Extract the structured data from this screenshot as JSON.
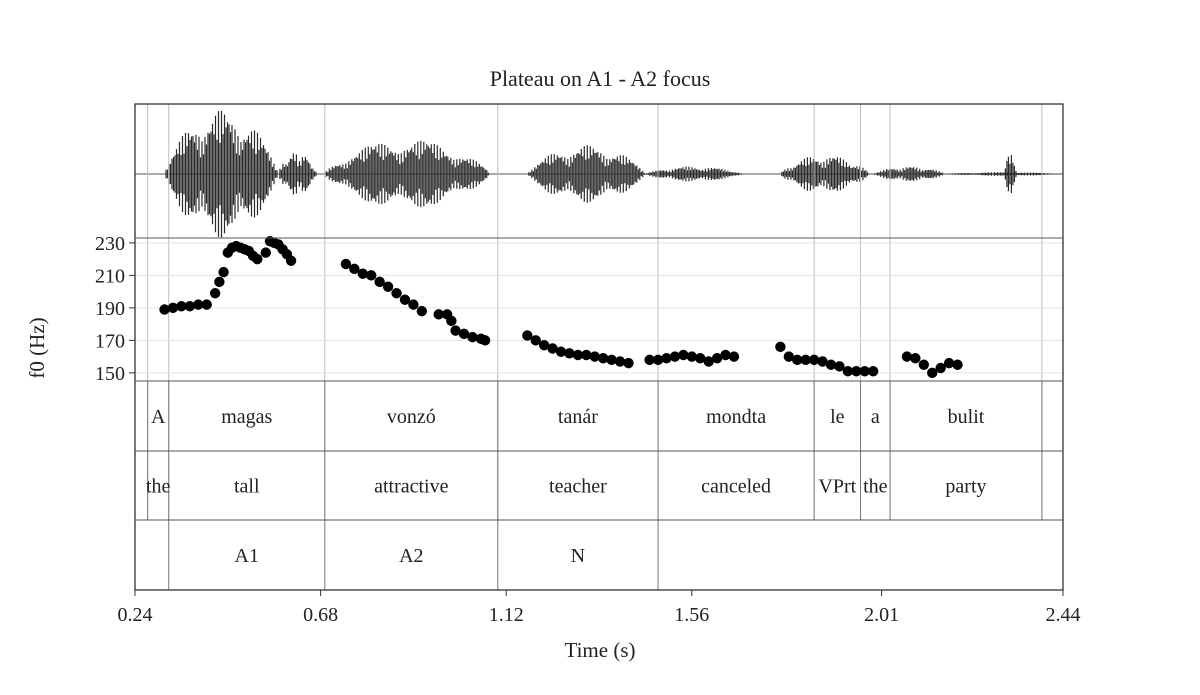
{
  "chart_data": {
    "type": "scatter",
    "title": "Plateau on A1 - A2 focus",
    "xlabel": "Time (s)",
    "ylabel": "f0 (Hz)",
    "xlim": [
      0.24,
      2.44
    ],
    "ylim": [
      145,
      233
    ],
    "x_ticks": [
      "0.24",
      "0.68",
      "1.12",
      "1.56",
      "2.01",
      "2.44"
    ],
    "y_ticks": [
      "230",
      "210",
      "190",
      "170",
      "150"
    ],
    "waveform_segments": [
      {
        "start": 0.31,
        "end": 0.58,
        "amplitude": 1.0
      },
      {
        "start": 0.58,
        "end": 0.67,
        "amplitude": 0.35
      },
      {
        "start": 0.69,
        "end": 1.08,
        "amplitude": 0.55
      },
      {
        "start": 1.17,
        "end": 1.45,
        "amplitude": 0.45
      },
      {
        "start": 1.45,
        "end": 1.68,
        "amplitude": 0.12
      },
      {
        "start": 1.77,
        "end": 1.98,
        "amplitude": 0.3
      },
      {
        "start": 1.99,
        "end": 2.16,
        "amplitude": 0.12
      },
      {
        "start": 2.16,
        "end": 2.44,
        "amplitude": 0.03
      },
      {
        "start": 2.3,
        "end": 2.33,
        "amplitude": 0.35
      }
    ],
    "series": [
      {
        "points": [
          [
            0.31,
            189
          ],
          [
            0.33,
            190
          ],
          [
            0.35,
            191
          ],
          [
            0.37,
            191
          ],
          [
            0.39,
            192
          ],
          [
            0.41,
            192
          ],
          [
            0.43,
            199
          ],
          [
            0.44,
            206
          ],
          [
            0.45,
            212
          ],
          [
            0.46,
            224
          ],
          [
            0.47,
            227
          ],
          [
            0.48,
            228
          ],
          [
            0.49,
            227
          ],
          [
            0.5,
            226
          ],
          [
            0.51,
            225
          ],
          [
            0.52,
            222
          ],
          [
            0.53,
            220
          ],
          [
            0.55,
            224
          ],
          [
            0.56,
            231
          ],
          [
            0.57,
            230
          ],
          [
            0.58,
            229
          ],
          [
            0.59,
            226
          ],
          [
            0.6,
            223
          ],
          [
            0.61,
            219
          ],
          [
            0.74,
            217
          ],
          [
            0.76,
            214
          ],
          [
            0.78,
            211
          ],
          [
            0.8,
            210
          ],
          [
            0.82,
            206
          ],
          [
            0.84,
            203
          ],
          [
            0.86,
            199
          ],
          [
            0.88,
            195
          ],
          [
            0.9,
            192
          ],
          [
            0.92,
            188
          ],
          [
            0.96,
            186
          ],
          [
            0.98,
            186
          ],
          [
            0.99,
            182
          ],
          [
            1.0,
            176
          ],
          [
            1.02,
            174
          ],
          [
            1.04,
            172
          ],
          [
            1.06,
            171
          ],
          [
            1.07,
            170
          ],
          [
            1.17,
            173
          ],
          [
            1.19,
            170
          ],
          [
            1.21,
            167
          ],
          [
            1.23,
            165
          ],
          [
            1.25,
            163
          ],
          [
            1.27,
            162
          ],
          [
            1.29,
            161
          ],
          [
            1.31,
            161
          ],
          [
            1.33,
            160
          ],
          [
            1.35,
            159
          ],
          [
            1.37,
            158
          ],
          [
            1.39,
            157
          ],
          [
            1.41,
            156
          ],
          [
            1.46,
            158
          ],
          [
            1.48,
            158
          ],
          [
            1.5,
            159
          ],
          [
            1.52,
            160
          ],
          [
            1.54,
            161
          ],
          [
            1.56,
            160
          ],
          [
            1.58,
            159
          ],
          [
            1.6,
            157
          ],
          [
            1.62,
            159
          ],
          [
            1.64,
            161
          ],
          [
            1.66,
            160
          ],
          [
            1.77,
            166
          ],
          [
            1.79,
            160
          ],
          [
            1.81,
            158
          ],
          [
            1.83,
            158
          ],
          [
            1.85,
            158
          ],
          [
            1.87,
            157
          ],
          [
            1.89,
            155
          ],
          [
            1.91,
            154
          ],
          [
            1.93,
            151
          ],
          [
            1.95,
            151
          ],
          [
            1.97,
            151
          ],
          [
            1.99,
            151
          ],
          [
            2.07,
            160
          ],
          [
            2.09,
            159
          ],
          [
            2.11,
            155
          ],
          [
            2.13,
            150
          ],
          [
            2.15,
            153
          ],
          [
            2.17,
            156
          ],
          [
            2.19,
            155
          ]
        ]
      }
    ],
    "tiers": [
      {
        "intervals": [
          {
            "start": 0.27,
            "end": 0.32,
            "label": "A"
          },
          {
            "start": 0.32,
            "end": 0.69,
            "label": "magas"
          },
          {
            "start": 0.69,
            "end": 1.1,
            "label": "vonzó"
          },
          {
            "start": 1.1,
            "end": 1.48,
            "label": "tanár"
          },
          {
            "start": 1.48,
            "end": 1.85,
            "label": "mondta"
          },
          {
            "start": 1.85,
            "end": 1.96,
            "label": "le"
          },
          {
            "start": 1.96,
            "end": 2.03,
            "label": "a"
          },
          {
            "start": 2.03,
            "end": 2.39,
            "label": "bulit"
          }
        ],
        "boundaries": [
          0.27,
          0.32,
          0.69,
          1.1,
          1.48,
          1.85,
          1.96,
          2.03,
          2.39
        ]
      },
      {
        "intervals": [
          {
            "start": 0.27,
            "end": 0.32,
            "label": "the"
          },
          {
            "start": 0.32,
            "end": 0.69,
            "label": "tall"
          },
          {
            "start": 0.69,
            "end": 1.1,
            "label": "attractive"
          },
          {
            "start": 1.1,
            "end": 1.48,
            "label": "teacher"
          },
          {
            "start": 1.48,
            "end": 1.85,
            "label": "canceled"
          },
          {
            "start": 1.85,
            "end": 1.96,
            "label": "VPrt"
          },
          {
            "start": 1.96,
            "end": 2.03,
            "label": "the"
          },
          {
            "start": 2.03,
            "end": 2.39,
            "label": "party"
          }
        ],
        "boundaries": [
          0.27,
          0.32,
          0.69,
          1.1,
          1.48,
          1.85,
          1.96,
          2.03,
          2.39
        ]
      },
      {
        "intervals": [
          {
            "start": 0.32,
            "end": 0.69,
            "label": "A1"
          },
          {
            "start": 0.69,
            "end": 1.1,
            "label": "A2"
          },
          {
            "start": 1.1,
            "end": 1.48,
            "label": "N"
          }
        ],
        "boundaries": [
          0.32,
          0.69,
          1.1,
          1.48
        ]
      }
    ],
    "grid": true,
    "legend": "none"
  }
}
